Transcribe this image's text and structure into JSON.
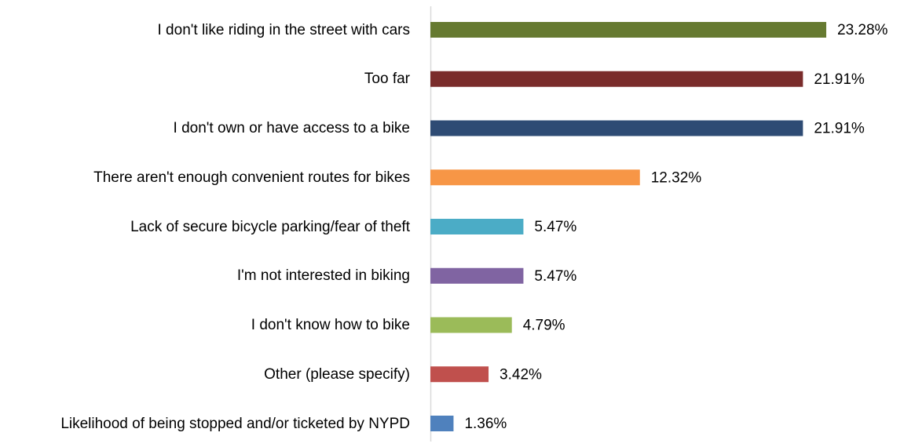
{
  "chart_data": {
    "type": "bar",
    "orientation": "horizontal",
    "categories": [
      "I don't like riding in the street with cars",
      "Too far",
      "I don't own or have access to a bike",
      "There aren't enough convenient routes for bikes",
      "Lack of secure bicycle parking/fear of theft",
      "I'm not interested in biking",
      "I don't know how to bike",
      "Other (please specify)",
      "Likelihood of being stopped and/or ticketed by NYPD"
    ],
    "values": [
      23.28,
      21.91,
      21.91,
      12.32,
      5.47,
      5.47,
      4.79,
      3.42,
      1.36
    ],
    "value_labels": [
      "23.28%",
      "21.91%",
      "21.91%",
      "12.32%",
      "5.47%",
      "5.47%",
      "4.79%",
      "3.42%",
      "1.36%"
    ],
    "colors": [
      "#667a31",
      "#7a2c2b",
      "#2e4b74",
      "#f79646",
      "#4bacc6",
      "#8064a2",
      "#9bbb59",
      "#c0504d",
      "#4f81bd"
    ],
    "xlim": [
      0,
      25
    ]
  }
}
